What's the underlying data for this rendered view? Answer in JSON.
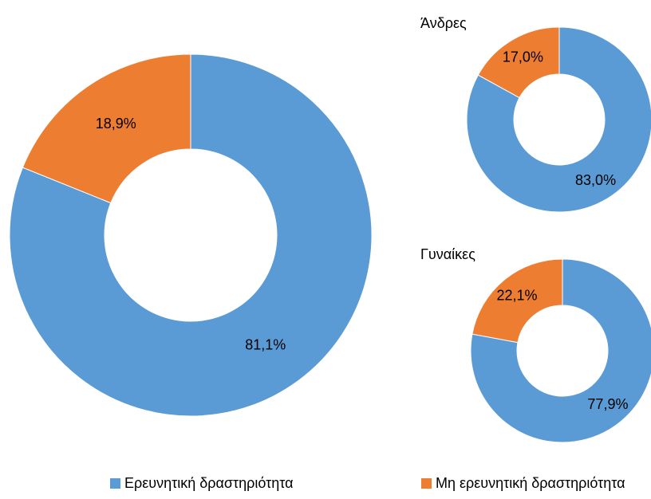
{
  "chart_data": [
    {
      "type": "pie",
      "categories": [
        "Ερευνητική δραστηριότητα",
        "Μη ερευνητική δραστηριότητα"
      ],
      "values": [
        81.1,
        18.9
      ],
      "value_labels": [
        "81,1%",
        "18,9%"
      ],
      "colors": [
        "#5b9bd5",
        "#ed7d31"
      ]
    },
    {
      "type": "pie",
      "title": "Άνδρες",
      "values": [
        83.0,
        17.0
      ],
      "value_labels": [
        "83,0%",
        "17,0%"
      ],
      "colors": [
        "#5b9bd5",
        "#ed7d31"
      ]
    },
    {
      "type": "pie",
      "title": "Γυναίκες",
      "values": [
        77.9,
        22.1
      ],
      "value_labels": [
        "77,9%",
        "22,1%"
      ],
      "colors": [
        "#5b9bd5",
        "#ed7d31"
      ]
    }
  ]
}
